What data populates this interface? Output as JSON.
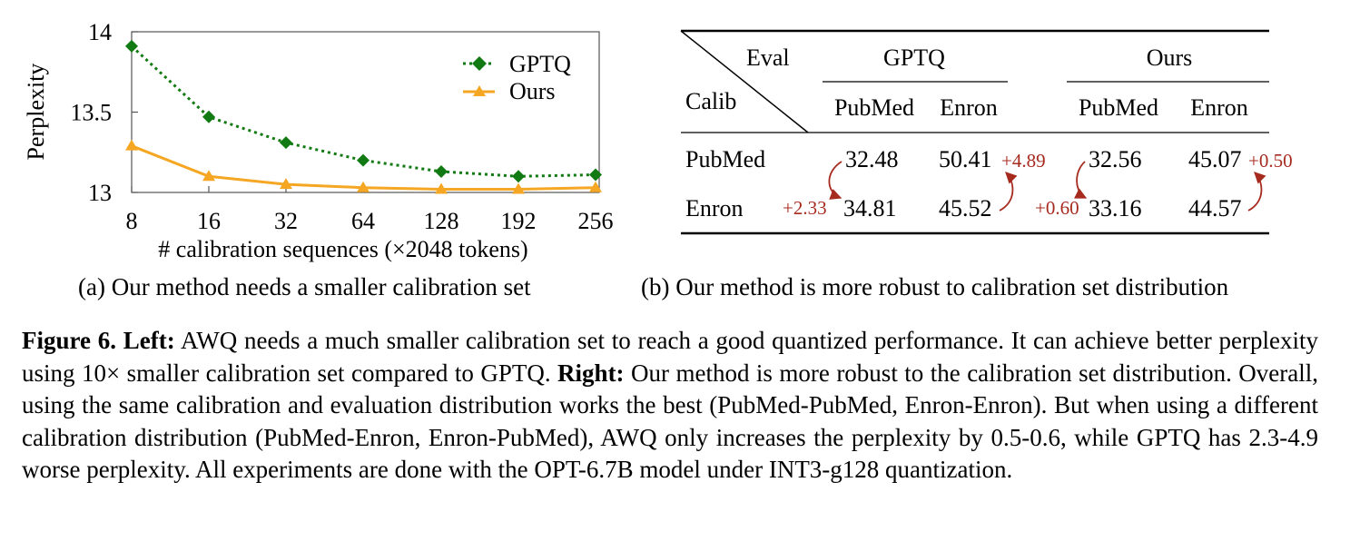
{
  "chart_data": {
    "type": "line",
    "xlabel": "# calibration sequences (×2048 tokens)",
    "ylabel": "Perplexity",
    "categories": [
      "8",
      "16",
      "32",
      "64",
      "128",
      "192",
      "256"
    ],
    "y_ticks": [
      "14",
      "13.5",
      "13"
    ],
    "ylim": [
      13,
      14
    ],
    "grid": false,
    "legend_position": "top-right",
    "series": [
      {
        "name": "GPTQ",
        "values": [
          13.91,
          13.47,
          13.31,
          13.2,
          13.13,
          13.1,
          13.11
        ],
        "color": "#127a12",
        "marker": "diamond",
        "line_style": "dotted"
      },
      {
        "name": "Ours",
        "values": [
          13.29,
          13.1,
          13.05,
          13.03,
          13.02,
          13.02,
          13.03
        ],
        "color": "#f5a623",
        "marker": "triangle",
        "line_style": "solid"
      }
    ]
  },
  "table": {
    "corner_eval": "Eval",
    "corner_calib": "Calib",
    "groups": [
      "GPTQ",
      "Ours"
    ],
    "subheaders": [
      "PubMed",
      "Enron",
      "PubMed",
      "Enron"
    ],
    "rows": [
      {
        "label": "PubMed",
        "cells": [
          "32.48",
          "50.41",
          "32.56",
          "45.07"
        ]
      },
      {
        "label": "Enron",
        "cells": [
          "34.81",
          "45.52",
          "33.16",
          "44.57"
        ]
      }
    ],
    "deltas": [
      "+4.89",
      "+2.33",
      "+0.60",
      "+0.50"
    ],
    "delta_color": "#a62a1e"
  },
  "captions": {
    "a": "(a) Our method needs a smaller calibration set",
    "b": "(b) Our method is more robust to calibration set distribution"
  },
  "figure_caption": {
    "label": "Figure 6.",
    "left_label": "Left:",
    "left_text": " AWQ needs a much smaller calibration set to reach a good quantized performance. It can achieve better perplexity using 10× smaller calibration set compared to GPTQ. ",
    "right_label": "Right:",
    "right_text": " Our method is more robust to the calibration set distribution. Overall, using the same calibration and evaluation distribution works the best (PubMed-PubMed, Enron-Enron). But when using a different calibration distribution (PubMed-Enron, Enron-PubMed), AWQ only increases the perplexity by 0.5-0.6, while GPTQ has 2.3-4.9 worse perplexity. All experiments are done with the OPT-6.7B model under INT3-g128 quantization."
  }
}
